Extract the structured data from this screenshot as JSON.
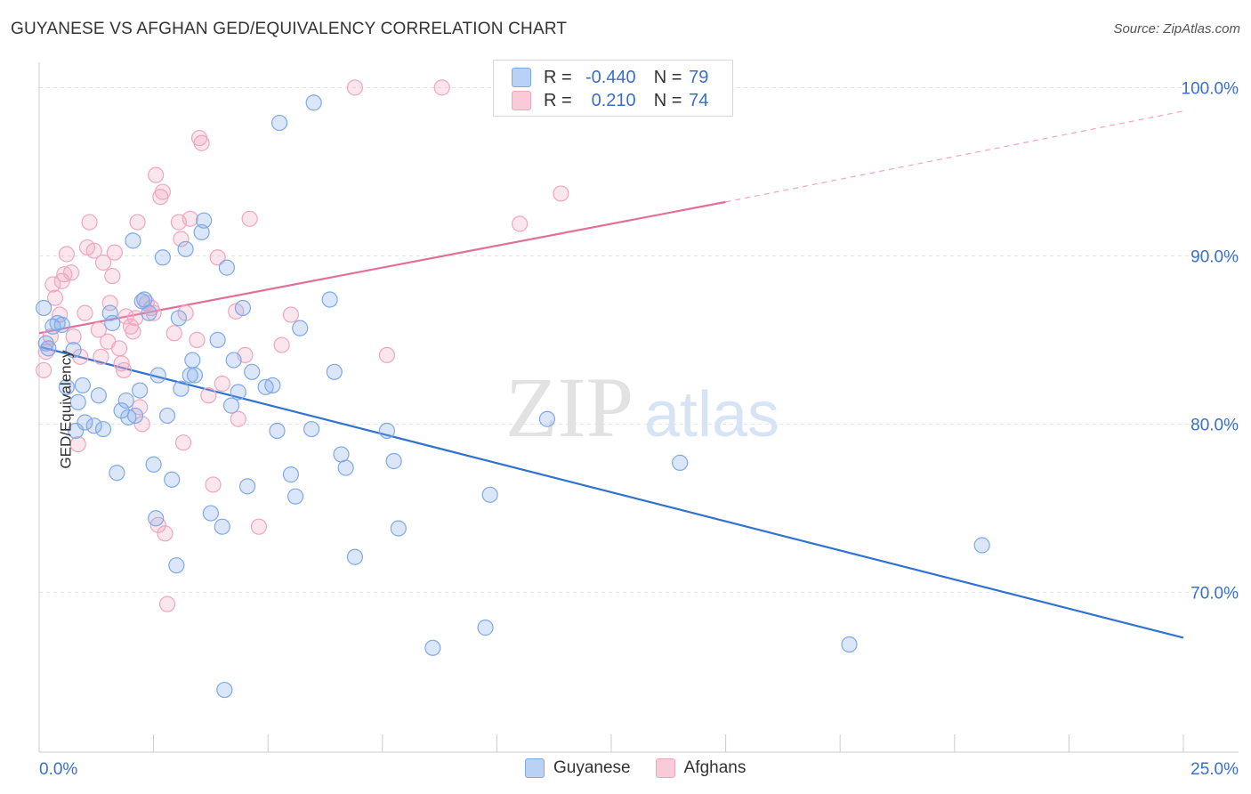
{
  "header": {
    "title": "GUYANESE VS AFGHAN GED/EQUIVALENCY CORRELATION CHART",
    "source": "Source: ZipAtlas.com"
  },
  "legend_top": {
    "rows": [
      {
        "r_label": "R =",
        "r_value": "-0.440",
        "n_label": "N =",
        "n_value": "79"
      },
      {
        "r_label": "R =",
        "r_value": "0.210",
        "n_label": "N =",
        "n_value": "74"
      }
    ]
  },
  "watermark": {
    "zip": "ZIP",
    "atlas": "atlas"
  },
  "chart_data": {
    "type": "scatter",
    "title": "GUYANESE VS AFGHAN GED/EQUIVALENCY CORRELATION CHART",
    "xlabel": "",
    "ylabel": "GED/Equivalency",
    "xlim": [
      0,
      25
    ],
    "ylim": [
      60.5,
      101.5
    ],
    "x_tick_labels": [
      "0.0%",
      "25.0%"
    ],
    "y_ticks": [
      70,
      80,
      90,
      100
    ],
    "y_tick_labels": [
      "70.0%",
      "80.0%",
      "90.0%",
      "100.0%"
    ],
    "grid": true,
    "legend_position": "bottom-center",
    "colors": {
      "guyanese": "#7ea9e8",
      "guyanese_line": "#2f72d0",
      "afghans": "#f0a6bf",
      "afghans_line": "#e07098"
    },
    "series": [
      {
        "name": "Guyanese",
        "trend": {
          "x": [
            0,
            25
          ],
          "y": [
            84.6,
            67.3
          ]
        },
        "points": [
          [
            0.1,
            86.9
          ],
          [
            0.15,
            84.8
          ],
          [
            0.2,
            84.5
          ],
          [
            0.3,
            85.8
          ],
          [
            0.4,
            86.0
          ],
          [
            0.5,
            85.9
          ],
          [
            0.6,
            82.2
          ],
          [
            0.75,
            84.4
          ],
          [
            0.8,
            79.6
          ],
          [
            0.85,
            81.3
          ],
          [
            0.95,
            82.3
          ],
          [
            1.0,
            80.1
          ],
          [
            1.2,
            79.9
          ],
          [
            1.3,
            81.7
          ],
          [
            1.4,
            79.7
          ],
          [
            1.55,
            86.6
          ],
          [
            1.6,
            86.0
          ],
          [
            1.7,
            77.1
          ],
          [
            1.8,
            80.8
          ],
          [
            1.9,
            81.4
          ],
          [
            1.95,
            80.4
          ],
          [
            2.05,
            90.9
          ],
          [
            2.1,
            80.5
          ],
          [
            2.2,
            82.0
          ],
          [
            2.25,
            87.3
          ],
          [
            2.3,
            87.4
          ],
          [
            2.4,
            86.6
          ],
          [
            2.5,
            77.6
          ],
          [
            2.55,
            74.4
          ],
          [
            2.6,
            82.9
          ],
          [
            2.7,
            89.9
          ],
          [
            2.8,
            80.5
          ],
          [
            2.9,
            76.7
          ],
          [
            3.0,
            71.6
          ],
          [
            3.05,
            86.3
          ],
          [
            3.1,
            82.1
          ],
          [
            3.2,
            90.4
          ],
          [
            3.3,
            82.9
          ],
          [
            3.35,
            83.8
          ],
          [
            3.4,
            82.9
          ],
          [
            3.55,
            91.4
          ],
          [
            3.6,
            92.1
          ],
          [
            3.75,
            74.7
          ],
          [
            3.9,
            85.0
          ],
          [
            4.0,
            73.9
          ],
          [
            4.05,
            64.2
          ],
          [
            4.1,
            89.3
          ],
          [
            4.2,
            81.1
          ],
          [
            4.25,
            83.8
          ],
          [
            4.35,
            81.9
          ],
          [
            4.45,
            86.9
          ],
          [
            4.55,
            76.3
          ],
          [
            4.65,
            83.1
          ],
          [
            4.95,
            82.2
          ],
          [
            5.1,
            82.3
          ],
          [
            5.2,
            79.6
          ],
          [
            5.25,
            97.9
          ],
          [
            5.5,
            77.0
          ],
          [
            5.6,
            75.7
          ],
          [
            5.7,
            85.7
          ],
          [
            5.95,
            79.7
          ],
          [
            6.0,
            99.1
          ],
          [
            6.35,
            87.4
          ],
          [
            6.45,
            83.1
          ],
          [
            6.6,
            78.2
          ],
          [
            6.7,
            77.4
          ],
          [
            6.9,
            72.1
          ],
          [
            7.6,
            79.6
          ],
          [
            7.75,
            77.8
          ],
          [
            7.85,
            73.8
          ],
          [
            8.6,
            66.7
          ],
          [
            9.75,
            67.9
          ],
          [
            9.85,
            75.8
          ],
          [
            11.1,
            80.3
          ],
          [
            14.0,
            77.7
          ],
          [
            17.7,
            66.9
          ],
          [
            20.6,
            72.8
          ]
        ]
      },
      {
        "name": "Afghans",
        "trend": {
          "x": [
            0,
            15.0
          ],
          "y": [
            85.4,
            93.2
          ]
        },
        "trend_dashed": {
          "x": [
            15.0,
            25
          ],
          "y": [
            93.2,
            98.6
          ]
        },
        "points": [
          [
            0.1,
            83.2
          ],
          [
            0.15,
            84.3
          ],
          [
            0.25,
            85.2
          ],
          [
            0.3,
            88.3
          ],
          [
            0.35,
            87.5
          ],
          [
            0.45,
            86.5
          ],
          [
            0.5,
            88.5
          ],
          [
            0.55,
            88.9
          ],
          [
            0.6,
            90.1
          ],
          [
            0.7,
            89.0
          ],
          [
            0.75,
            85.2
          ],
          [
            0.85,
            78.8
          ],
          [
            0.9,
            84.0
          ],
          [
            1.0,
            86.6
          ],
          [
            1.05,
            90.5
          ],
          [
            1.1,
            92.0
          ],
          [
            1.2,
            90.3
          ],
          [
            1.3,
            85.6
          ],
          [
            1.35,
            84.0
          ],
          [
            1.4,
            89.6
          ],
          [
            1.5,
            84.9
          ],
          [
            1.55,
            87.2
          ],
          [
            1.6,
            88.8
          ],
          [
            1.65,
            90.2
          ],
          [
            1.75,
            84.5
          ],
          [
            1.8,
            83.6
          ],
          [
            1.85,
            83.2
          ],
          [
            1.9,
            86.4
          ],
          [
            2.0,
            85.8
          ],
          [
            2.05,
            85.5
          ],
          [
            2.1,
            86.3
          ],
          [
            2.15,
            92.0
          ],
          [
            2.2,
            81.0
          ],
          [
            2.25,
            80.0
          ],
          [
            2.35,
            87.2
          ],
          [
            2.45,
            86.9
          ],
          [
            2.5,
            86.6
          ],
          [
            2.55,
            94.8
          ],
          [
            2.6,
            74.0
          ],
          [
            2.65,
            93.5
          ],
          [
            2.7,
            93.8
          ],
          [
            2.75,
            73.5
          ],
          [
            2.8,
            69.3
          ],
          [
            2.95,
            85.4
          ],
          [
            3.05,
            92.0
          ],
          [
            3.1,
            91.0
          ],
          [
            3.15,
            78.9
          ],
          [
            3.2,
            86.6
          ],
          [
            3.3,
            92.2
          ],
          [
            3.45,
            85.0
          ],
          [
            3.5,
            97.0
          ],
          [
            3.55,
            96.7
          ],
          [
            3.7,
            81.7
          ],
          [
            3.8,
            76.4
          ],
          [
            3.9,
            89.9
          ],
          [
            4.0,
            82.4
          ],
          [
            4.3,
            86.7
          ],
          [
            4.35,
            80.3
          ],
          [
            4.5,
            84.1
          ],
          [
            4.6,
            92.2
          ],
          [
            4.8,
            73.9
          ],
          [
            5.3,
            84.7
          ],
          [
            5.5,
            86.5
          ],
          [
            6.9,
            100.0
          ],
          [
            7.6,
            84.1
          ],
          [
            8.8,
            100.0
          ],
          [
            10.5,
            91.9
          ],
          [
            11.4,
            93.7
          ]
        ]
      }
    ]
  },
  "legend_bottom": {
    "items": [
      {
        "label": "Guyanese"
      },
      {
        "label": "Afghans"
      }
    ]
  }
}
